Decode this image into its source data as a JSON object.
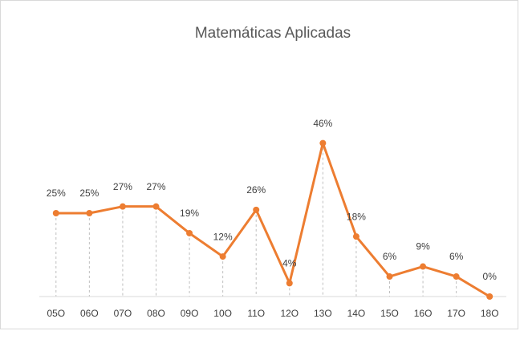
{
  "chart_data": {
    "type": "line",
    "title": "Matemáticas Aplicadas",
    "categories": [
      "05O",
      "06O",
      "07O",
      "08O",
      "09O",
      "10O",
      "11O",
      "12O",
      "13O",
      "14O",
      "15O",
      "16O",
      "17O",
      "18O"
    ],
    "values": [
      25,
      25,
      27,
      27,
      19,
      12,
      26,
      4,
      46,
      18,
      6,
      9,
      6,
      0
    ],
    "value_labels": [
      "25%",
      "25%",
      "27%",
      "27%",
      "19%",
      "12%",
      "26%",
      "4%",
      "46%",
      "18%",
      "6%",
      "9%",
      "6%",
      "0%"
    ],
    "color": "#ed7d31",
    "ylim": [
      0,
      50
    ],
    "drop_lines": true
  }
}
